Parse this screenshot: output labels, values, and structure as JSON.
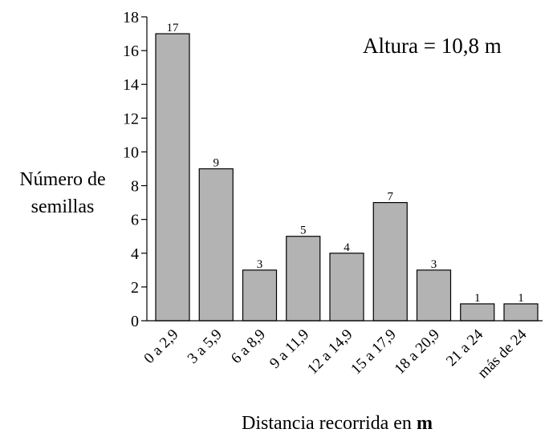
{
  "chart_data": {
    "type": "bar",
    "categories": [
      "0 a 2,9",
      "3 a 5,9",
      "6 a 8,9",
      "9 a 11,9",
      "12 a 14,9",
      "15 a 17,9",
      "18 a 20,9",
      "21 a 24",
      "más de 24"
    ],
    "values": [
      17,
      9,
      3,
      5,
      4,
      7,
      3,
      1,
      1
    ],
    "title": "",
    "annotation": "Altura = 10,8 m",
    "ylabel_line1": "Número de",
    "ylabel_line2": "semillas",
    "xlabel": "Distancia recorrida en ",
    "xlabel_bold": "m",
    "ylim": [
      0,
      18
    ],
    "yticks": [
      0,
      2,
      4,
      6,
      8,
      10,
      12,
      14,
      16,
      18
    ],
    "grid": false,
    "bar_color": "#b3b3b3",
    "edge_color": "#000000"
  }
}
